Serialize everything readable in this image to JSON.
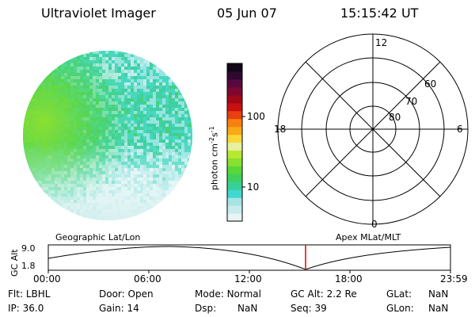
{
  "header": {
    "title": "Ultraviolet Imager",
    "date": "05 Jun 07",
    "time": "15:15:42 UT"
  },
  "colorbar": {
    "unit_label": "photon cm",
    "unit_exp1": "-2",
    "unit_s": "s",
    "unit_exp2": "-1",
    "tick_100": "100",
    "tick_10": "10",
    "colors": [
      "#e8f4f4",
      "#c8ecec",
      "#a8e4e4",
      "#40d8d0",
      "#38d098",
      "#40d060",
      "#58d838",
      "#88e030",
      "#b8e830",
      "#e8f0a0",
      "#f8d838",
      "#f8a818",
      "#f88010",
      "#e84010",
      "#c81010",
      "#a00818",
      "#800830",
      "#580840",
      "#300830",
      "#100818"
    ]
  },
  "polar": {
    "labels": {
      "top": "12",
      "bottom": "0",
      "left": "18",
      "right": "6"
    },
    "ring_labels": [
      "60",
      "70",
      "80"
    ]
  },
  "altitude_panel": {
    "left_title": "Geographic Lat/Lon",
    "right_title": "Apex MLat/MLT",
    "axis_label": "GC Alt",
    "y_max": "9.0",
    "y_min": "1.8",
    "x_ticks": [
      "00:00",
      "06:00",
      "12:00",
      "18:00",
      "23:59"
    ],
    "current_time_color": "#e00000"
  },
  "info": {
    "row1": {
      "flt_label": "Flt:",
      "flt_value": "LBHL",
      "door_label": "Door:",
      "door_value": "Open",
      "mode_label": "Mode:",
      "mode_value": "Normal",
      "gcalt_label": "GC Alt:",
      "gcalt_value": "2.2 Re",
      "glat_label": "GLat:",
      "glat_value": "NaN"
    },
    "row2": {
      "ip_label": "IP:",
      "ip_value": "36.0",
      "gain_label": "Gain:",
      "gain_value": "14",
      "dsp_label": "Dsp:",
      "dsp_value": "NaN",
      "seq_label": "Seq:",
      "seq_value": "39",
      "glon_label": "GLon:",
      "glon_value": "NaN"
    }
  }
}
